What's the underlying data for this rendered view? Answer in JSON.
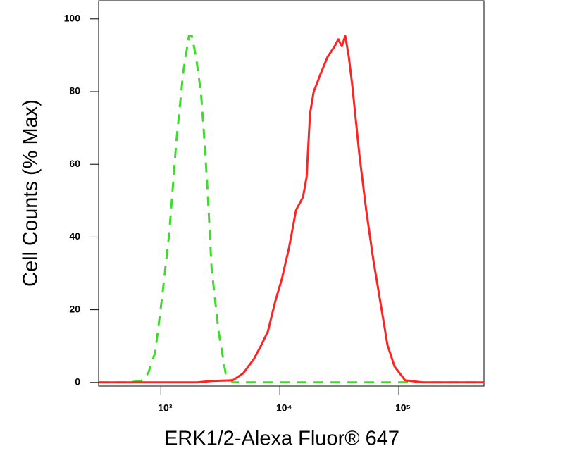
{
  "chart_data": {
    "type": "line",
    "x_label": "ERK1/2-Alexa Fluor® 647",
    "y_label": "Cell Counts (% Max)",
    "x_scale": "log",
    "xlim": [
      300,
      520000
    ],
    "ylim": [
      -1,
      105
    ],
    "xticks": [
      {
        "value": 1000,
        "label": "10³"
      },
      {
        "value": 10000,
        "label": "10⁴"
      },
      {
        "value": 100000,
        "label": "10⁵"
      }
    ],
    "yticks": [
      0,
      20,
      40,
      60,
      80,
      100
    ],
    "series": [
      {
        "color": "#3ddc2a",
        "line_style": "dashed",
        "x": [
          301,
          520,
          682,
          782,
          897,
          1027,
          1178,
          1350,
          1547,
          1725,
          1820,
          1977,
          2175,
          2327,
          2490,
          2670,
          3056,
          3500,
          4020,
          520000
        ],
        "values": [
          0,
          0,
          0.4,
          2.5,
          8.3,
          23.8,
          41.2,
          66.3,
          85.7,
          95.4,
          95.4,
          89.4,
          79.7,
          66.3,
          50.8,
          31.5,
          14.1,
          2.5,
          0,
          0
        ]
      },
      {
        "color": "#ff2424",
        "line_style": "solid",
        "x": [
          301,
          2030,
          2670,
          4020,
          4920,
          6040,
          6920,
          7930,
          9100,
          10420,
          11940,
          13680,
          15670,
          16790,
          17960,
          19230,
          22030,
          25240,
          28970,
          30970,
          33190,
          35480,
          38020,
          40640,
          46670,
          53460,
          61230,
          70150,
          80350,
          92050,
          112900,
          158900,
          520000
        ],
        "values": [
          0,
          0,
          0.4,
          0.6,
          2.5,
          6.4,
          10,
          14,
          22,
          28.6,
          37,
          47.4,
          51,
          56.5,
          74,
          79.9,
          84.9,
          89.6,
          92.5,
          94.4,
          92.5,
          95.3,
          89.6,
          81.8,
          62.5,
          47,
          33.5,
          21.9,
          10.3,
          4.4,
          0.6,
          0,
          0
        ]
      }
    ]
  }
}
